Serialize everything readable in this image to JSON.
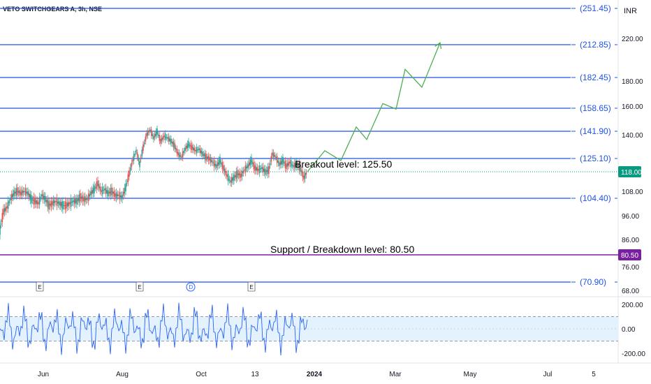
{
  "header": {
    "title": "VETO SWITCHGEARS A, 3h, NSE",
    "currency": "INR"
  },
  "chart_data": {
    "type": "line",
    "price_axis": {
      "ticks": [
        "220.00",
        "180.00",
        "160.00",
        "140.00",
        "108.00",
        "96.00",
        "86.00",
        "76.00",
        "68.00"
      ],
      "tick_values": [
        220,
        180,
        160,
        140,
        108,
        96,
        86,
        76,
        68
      ]
    },
    "levels": [
      {
        "label": "(251.45)",
        "value": 251.45
      },
      {
        "label": "(212.85)",
        "value": 212.85
      },
      {
        "label": "(182.45)",
        "value": 182.45
      },
      {
        "label": "(158.65)",
        "value": 158.65
      },
      {
        "label": "(141.90)",
        "value": 141.9
      },
      {
        "label": "(125.10)",
        "value": 125.1
      },
      {
        "label": "(104.40)",
        "value": 104.4
      },
      {
        "label": "(70.90)",
        "value": 70.9
      }
    ],
    "current_price": {
      "label": "118.00",
      "value": 118.0
    },
    "support": {
      "label": "80.50",
      "value": 80.5
    },
    "annotations": {
      "breakout": "Breakout level: 125.50",
      "support": "Support / Breakdown level: 80.50"
    },
    "price_series": [
      {
        "t": 0,
        "v": 90
      },
      {
        "t": 5,
        "v": 98
      },
      {
        "t": 10,
        "v": 100
      },
      {
        "t": 15,
        "v": 104
      },
      {
        "t": 20,
        "v": 107
      },
      {
        "t": 25,
        "v": 108
      },
      {
        "t": 30,
        "v": 107
      },
      {
        "t": 35,
        "v": 108
      },
      {
        "t": 40,
        "v": 107
      },
      {
        "t": 45,
        "v": 104
      },
      {
        "t": 50,
        "v": 103
      },
      {
        "t": 55,
        "v": 102
      },
      {
        "t": 60,
        "v": 106
      },
      {
        "t": 65,
        "v": 104
      },
      {
        "t": 70,
        "v": 101
      },
      {
        "t": 75,
        "v": 102
      },
      {
        "t": 80,
        "v": 103
      },
      {
        "t": 85,
        "v": 102
      },
      {
        "t": 90,
        "v": 101
      },
      {
        "t": 95,
        "v": 101
      },
      {
        "t": 100,
        "v": 102
      },
      {
        "t": 105,
        "v": 103
      },
      {
        "t": 110,
        "v": 103
      },
      {
        "t": 115,
        "v": 105
      },
      {
        "t": 120,
        "v": 104
      },
      {
        "t": 125,
        "v": 104
      },
      {
        "t": 130,
        "v": 107
      },
      {
        "t": 135,
        "v": 109
      },
      {
        "t": 140,
        "v": 112
      },
      {
        "t": 145,
        "v": 108
      },
      {
        "t": 150,
        "v": 109
      },
      {
        "t": 155,
        "v": 107
      },
      {
        "t": 160,
        "v": 108
      },
      {
        "t": 165,
        "v": 106
      },
      {
        "t": 170,
        "v": 106
      },
      {
        "t": 175,
        "v": 105
      },
      {
        "t": 180,
        "v": 110
      },
      {
        "t": 185,
        "v": 117
      },
      {
        "t": 190,
        "v": 124
      },
      {
        "t": 195,
        "v": 130
      },
      {
        "t": 200,
        "v": 122
      },
      {
        "t": 205,
        "v": 132
      },
      {
        "t": 210,
        "v": 140
      },
      {
        "t": 215,
        "v": 143
      },
      {
        "t": 220,
        "v": 138
      },
      {
        "t": 225,
        "v": 142
      },
      {
        "t": 230,
        "v": 136
      },
      {
        "t": 235,
        "v": 139
      },
      {
        "t": 240,
        "v": 138
      },
      {
        "t": 245,
        "v": 136
      },
      {
        "t": 250,
        "v": 133
      },
      {
        "t": 255,
        "v": 128
      },
      {
        "t": 260,
        "v": 126
      },
      {
        "t": 265,
        "v": 131
      },
      {
        "t": 270,
        "v": 134
      },
      {
        "t": 275,
        "v": 132
      },
      {
        "t": 280,
        "v": 130
      },
      {
        "t": 285,
        "v": 131
      },
      {
        "t": 290,
        "v": 128
      },
      {
        "t": 295,
        "v": 126
      },
      {
        "t": 300,
        "v": 125
      },
      {
        "t": 305,
        "v": 123
      },
      {
        "t": 310,
        "v": 121
      },
      {
        "t": 315,
        "v": 124
      },
      {
        "t": 320,
        "v": 120
      },
      {
        "t": 325,
        "v": 116
      },
      {
        "t": 330,
        "v": 113
      },
      {
        "t": 335,
        "v": 115
      },
      {
        "t": 340,
        "v": 117
      },
      {
        "t": 345,
        "v": 116
      },
      {
        "t": 350,
        "v": 119
      },
      {
        "t": 355,
        "v": 121
      },
      {
        "t": 360,
        "v": 124
      },
      {
        "t": 365,
        "v": 120
      },
      {
        "t": 370,
        "v": 119
      },
      {
        "t": 375,
        "v": 120
      },
      {
        "t": 380,
        "v": 118
      },
      {
        "t": 385,
        "v": 119
      },
      {
        "t": 390,
        "v": 128
      },
      {
        "t": 395,
        "v": 126
      },
      {
        "t": 400,
        "v": 122
      },
      {
        "t": 405,
        "v": 124
      },
      {
        "t": 410,
        "v": 121
      },
      {
        "t": 415,
        "v": 123
      },
      {
        "t": 420,
        "v": 121
      },
      {
        "t": 425,
        "v": 122
      },
      {
        "t": 430,
        "v": 120
      },
      {
        "t": 435,
        "v": 115
      },
      {
        "t": 440,
        "v": 118
      }
    ],
    "projection": [
      {
        "t": 440,
        "v": 118
      },
      {
        "t": 465,
        "v": 130
      },
      {
        "t": 488,
        "v": 124
      },
      {
        "t": 510,
        "v": 145
      },
      {
        "t": 525,
        "v": 137
      },
      {
        "t": 548,
        "v": 162
      },
      {
        "t": 567,
        "v": 158
      },
      {
        "t": 580,
        "v": 190
      },
      {
        "t": 604,
        "v": 175
      },
      {
        "t": 630,
        "v": 215
      }
    ],
    "oscillator": {
      "ticks": [
        "200.00",
        "0.00",
        "-200.00"
      ],
      "tick_values": [
        200,
        0,
        -200
      ],
      "band": [
        -100,
        100
      ]
    },
    "x_ticks": [
      {
        "label": "Jun",
        "t": 62
      },
      {
        "label": "Aug",
        "t": 175
      },
      {
        "label": "Oct",
        "t": 288
      },
      {
        "label": "13",
        "t": 365
      },
      {
        "label": "2024",
        "t": 450
      },
      {
        "label": "Mar",
        "t": 566
      },
      {
        "label": "May",
        "t": 673
      },
      {
        "label": "Jul",
        "t": 784
      },
      {
        "label": "5",
        "t": 850
      }
    ],
    "events": [
      {
        "label": "E",
        "t": 57
      },
      {
        "label": "E",
        "t": 200
      },
      {
        "label": "D",
        "t": 273
      },
      {
        "label": "E",
        "t": 360
      }
    ],
    "colors": {
      "level_line": "#1e53e5",
      "support_line": "#7b1fa2",
      "projection": "#4caf50",
      "candle_up": "#26a69a",
      "candle_down": "#ef5350",
      "current_price_badge": "#089981",
      "oscillator": "#2962ff",
      "oscillator_band": "#e3f2fd"
    }
  }
}
